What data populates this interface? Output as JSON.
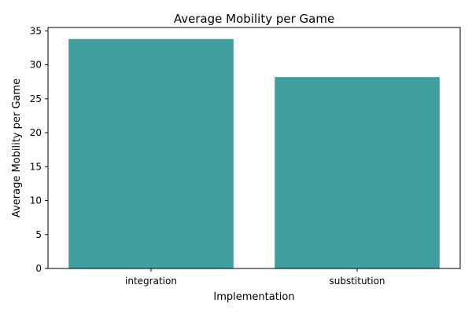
{
  "chart_data": {
    "type": "bar",
    "title": "Average Mobility per Game",
    "xlabel": "Implementation",
    "ylabel": "Average Mobility per Game",
    "categories": [
      "integration",
      "substitution"
    ],
    "values": [
      33.8,
      28.2
    ],
    "ylim": [
      0,
      35.5
    ],
    "yticks": [
      0,
      5,
      10,
      15,
      20,
      25,
      30,
      35
    ],
    "grid": false,
    "bar_color": "#40a0a0"
  }
}
